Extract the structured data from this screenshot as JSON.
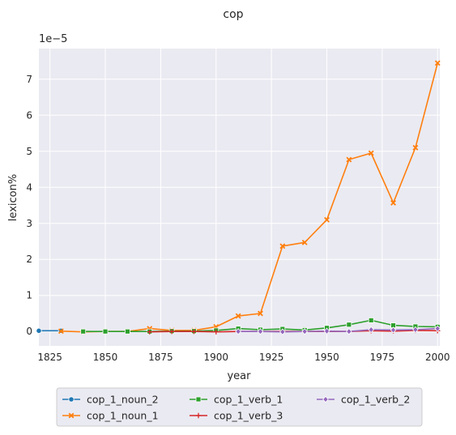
{
  "chart_data": {
    "type": "line",
    "title": "cop",
    "xlabel": "year",
    "ylabel": "lexicon%",
    "y_offset_label": "1e−5",
    "xlim": [
      1820,
      2001
    ],
    "ylim": [
      -0.4,
      7.85
    ],
    "x_ticks": [
      1825,
      1850,
      1875,
      1900,
      1925,
      1950,
      1975,
      2000
    ],
    "y_ticks": [
      0,
      1,
      2,
      3,
      4,
      5,
      6,
      7
    ],
    "grid": true,
    "legend_position": "bottom",
    "series": [
      {
        "name": "cop_1_noun_2",
        "color": "#1f77b4",
        "marker": "circle",
        "x": [
          1820,
          1830
        ],
        "y": [
          0.02,
          0.02
        ]
      },
      {
        "name": "cop_1_noun_1",
        "color": "#ff7f0e",
        "marker": "x",
        "x": [
          1830,
          1840,
          1850,
          1860,
          1870,
          1880,
          1890,
          1900,
          1910,
          1920,
          1930,
          1940,
          1950,
          1960,
          1970,
          1980,
          1990,
          2000
        ],
        "y": [
          0.01,
          -0.01,
          0.0,
          0.0,
          0.08,
          0.03,
          0.03,
          0.13,
          0.43,
          0.5,
          2.37,
          2.47,
          3.1,
          4.77,
          4.95,
          3.57,
          5.1,
          7.45
        ]
      },
      {
        "name": "cop_1_verb_1",
        "color": "#2ca02c",
        "marker": "square",
        "x": [
          1840,
          1850,
          1860,
          1870,
          1880,
          1890,
          1900,
          1910,
          1920,
          1930,
          1940,
          1950,
          1960,
          1970,
          1980,
          1990,
          2000
        ],
        "y": [
          0.0,
          0.0,
          0.0,
          0.0,
          0.01,
          0.01,
          0.03,
          0.08,
          0.05,
          0.07,
          0.04,
          0.1,
          0.19,
          0.31,
          0.17,
          0.14,
          0.13
        ]
      },
      {
        "name": "cop_1_verb_3",
        "color": "#d62728",
        "marker": "plus",
        "x": [
          1870,
          1880,
          1890,
          1900,
          1910,
          1920,
          1930,
          1940,
          1950,
          1960,
          1970,
          1980,
          1990,
          2000
        ],
        "y": [
          -0.01,
          0.0,
          0.0,
          -0.01,
          0.0,
          0.0,
          0.0,
          0.0,
          0.0,
          0.0,
          0.02,
          0.01,
          0.03,
          0.02
        ]
      },
      {
        "name": "cop_1_verb_2",
        "color": "#9467bd",
        "marker": "diamond",
        "x": [
          1910,
          1920,
          1930,
          1940,
          1950,
          1960,
          1970,
          1980,
          1990,
          2000
        ],
        "y": [
          0.0,
          0.0,
          -0.01,
          0.0,
          0.01,
          0.0,
          0.05,
          0.04,
          0.05,
          0.08
        ]
      }
    ]
  }
}
